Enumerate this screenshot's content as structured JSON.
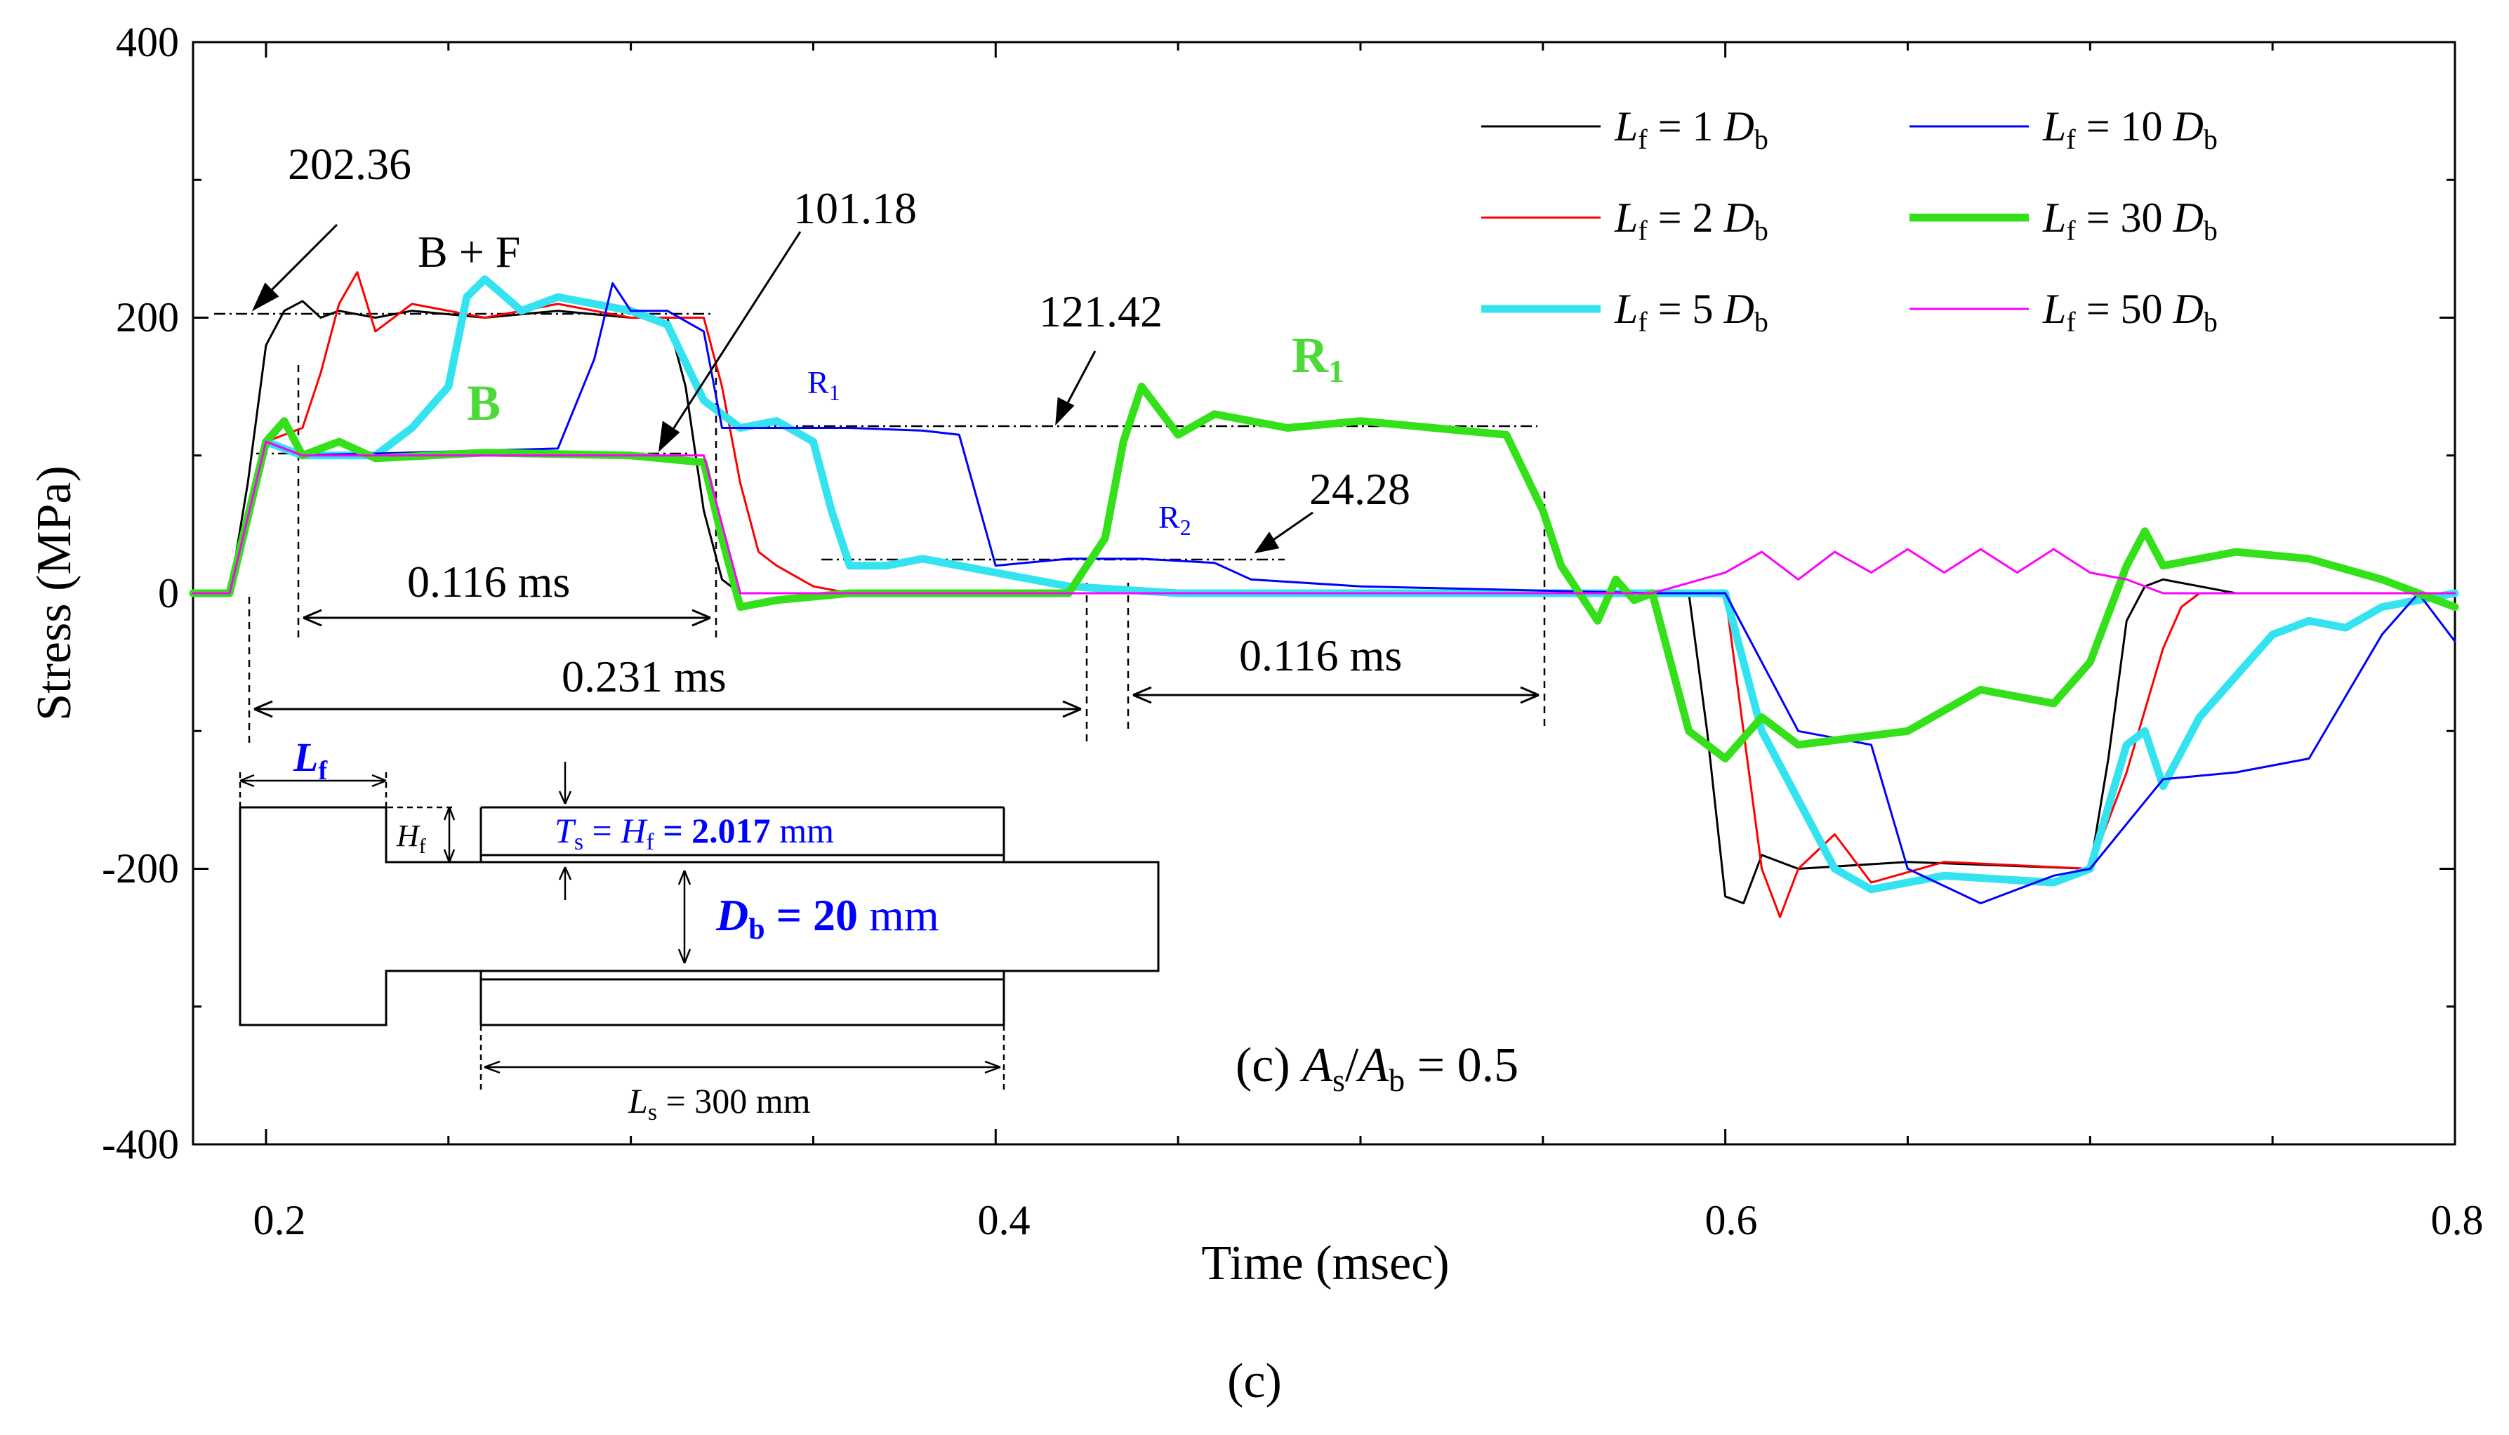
{
  "chart_data": {
    "type": "line",
    "title": "(c) As/Ab = 0.5",
    "caption": "(c)",
    "xlabel": "Time (msec)",
    "ylabel": "Stress (MPa)",
    "xlim": [
      0.18,
      0.8
    ],
    "ylim": [
      -400,
      400
    ],
    "x_ticks": [
      "0.2",
      "0.4",
      "0.6",
      "0.8"
    ],
    "y_ticks": [
      "400",
      "200",
      "0",
      "-200",
      "-400"
    ],
    "legend_position": "top-right",
    "panel_label": {
      "prefix": "(c)  ",
      "a": "A",
      "s": "s",
      "slash": "/",
      "b": "A",
      "bsub": "b",
      "eq": " = 0.5"
    },
    "series": [
      {
        "name": "Lf = 1 Db",
        "label_main": "L",
        "label_sub": "f",
        "label_mid": " = 1 ",
        "label_d": "D",
        "label_dsub": "b",
        "color": "#000000",
        "width": 3,
        "points": [
          [
            0.18,
            0
          ],
          [
            0.19,
            0
          ],
          [
            0.195,
            80
          ],
          [
            0.2,
            180
          ],
          [
            0.205,
            205
          ],
          [
            0.21,
            212
          ],
          [
            0.215,
            200
          ],
          [
            0.22,
            205
          ],
          [
            0.23,
            200
          ],
          [
            0.24,
            205
          ],
          [
            0.26,
            200
          ],
          [
            0.28,
            205
          ],
          [
            0.3,
            200
          ],
          [
            0.31,
            200
          ],
          [
            0.315,
            150
          ],
          [
            0.32,
            60
          ],
          [
            0.325,
            10
          ],
          [
            0.33,
            0
          ],
          [
            0.34,
            0
          ],
          [
            0.36,
            0
          ],
          [
            0.4,
            0
          ],
          [
            0.5,
            0
          ],
          [
            0.59,
            0
          ],
          [
            0.595,
            -100
          ],
          [
            0.6,
            -220
          ],
          [
            0.605,
            -225
          ],
          [
            0.61,
            -190
          ],
          [
            0.62,
            -200
          ],
          [
            0.65,
            -195
          ],
          [
            0.7,
            -200
          ],
          [
            0.705,
            -120
          ],
          [
            0.71,
            -20
          ],
          [
            0.715,
            5
          ],
          [
            0.72,
            10
          ],
          [
            0.74,
            0
          ],
          [
            0.78,
            0
          ],
          [
            0.8,
            0
          ]
        ]
      },
      {
        "name": "Lf = 2 Db",
        "label_main": "L",
        "label_sub": "f",
        "label_mid": " = 2 ",
        "label_d": "D",
        "label_dsub": "b",
        "color": "#ff0000",
        "width": 3,
        "points": [
          [
            0.18,
            0
          ],
          [
            0.19,
            0
          ],
          [
            0.2,
            110
          ],
          [
            0.21,
            120
          ],
          [
            0.215,
            160
          ],
          [
            0.22,
            210
          ],
          [
            0.225,
            233
          ],
          [
            0.23,
            190
          ],
          [
            0.24,
            210
          ],
          [
            0.26,
            200
          ],
          [
            0.28,
            210
          ],
          [
            0.3,
            200
          ],
          [
            0.32,
            200
          ],
          [
            0.325,
            150
          ],
          [
            0.33,
            80
          ],
          [
            0.335,
            30
          ],
          [
            0.34,
            20
          ],
          [
            0.35,
            5
          ],
          [
            0.36,
            0
          ],
          [
            0.4,
            0
          ],
          [
            0.5,
            0
          ],
          [
            0.6,
            0
          ],
          [
            0.605,
            -100
          ],
          [
            0.61,
            -200
          ],
          [
            0.615,
            -235
          ],
          [
            0.62,
            -200
          ],
          [
            0.63,
            -175
          ],
          [
            0.64,
            -210
          ],
          [
            0.66,
            -195
          ],
          [
            0.7,
            -200
          ],
          [
            0.71,
            -130
          ],
          [
            0.72,
            -40
          ],
          [
            0.725,
            -10
          ],
          [
            0.73,
            0
          ],
          [
            0.75,
            0
          ],
          [
            0.8,
            0
          ]
        ]
      },
      {
        "name": "Lf = 5 Db",
        "label_main": "L",
        "label_sub": "f",
        "label_mid": " = 5 ",
        "label_d": "D",
        "label_dsub": "b",
        "color": "#33e3f0",
        "width": 11,
        "points": [
          [
            0.18,
            0
          ],
          [
            0.19,
            0
          ],
          [
            0.2,
            110
          ],
          [
            0.21,
            100
          ],
          [
            0.23,
            100
          ],
          [
            0.24,
            120
          ],
          [
            0.25,
            150
          ],
          [
            0.255,
            215
          ],
          [
            0.26,
            228
          ],
          [
            0.27,
            205
          ],
          [
            0.28,
            215
          ],
          [
            0.3,
            205
          ],
          [
            0.31,
            195
          ],
          [
            0.32,
            140
          ],
          [
            0.33,
            120
          ],
          [
            0.34,
            125
          ],
          [
            0.35,
            110
          ],
          [
            0.355,
            60
          ],
          [
            0.36,
            20
          ],
          [
            0.37,
            20
          ],
          [
            0.38,
            25
          ],
          [
            0.4,
            15
          ],
          [
            0.42,
            5
          ],
          [
            0.45,
            0
          ],
          [
            0.55,
            0
          ],
          [
            0.6,
            0
          ],
          [
            0.61,
            -100
          ],
          [
            0.62,
            -150
          ],
          [
            0.63,
            -200
          ],
          [
            0.64,
            -215
          ],
          [
            0.66,
            -205
          ],
          [
            0.69,
            -210
          ],
          [
            0.7,
            -200
          ],
          [
            0.71,
            -110
          ],
          [
            0.715,
            -100
          ],
          [
            0.72,
            -140
          ],
          [
            0.73,
            -90
          ],
          [
            0.74,
            -60
          ],
          [
            0.75,
            -30
          ],
          [
            0.76,
            -20
          ],
          [
            0.77,
            -25
          ],
          [
            0.78,
            -10
          ],
          [
            0.8,
            0
          ]
        ]
      },
      {
        "name": "Lf = 10 Db",
        "label_main": "L",
        "label_sub": "f",
        "label_mid": " = 10 ",
        "label_d": "D",
        "label_dsub": "b",
        "color": "#0000ff",
        "width": 3,
        "points": [
          [
            0.18,
            0
          ],
          [
            0.19,
            0
          ],
          [
            0.2,
            110
          ],
          [
            0.21,
            100
          ],
          [
            0.28,
            105
          ],
          [
            0.29,
            170
          ],
          [
            0.295,
            225
          ],
          [
            0.3,
            205
          ],
          [
            0.31,
            205
          ],
          [
            0.32,
            190
          ],
          [
            0.325,
            120
          ],
          [
            0.34,
            120
          ],
          [
            0.36,
            120
          ],
          [
            0.38,
            118
          ],
          [
            0.39,
            115
          ],
          [
            0.4,
            20
          ],
          [
            0.42,
            25
          ],
          [
            0.44,
            25
          ],
          [
            0.46,
            22
          ],
          [
            0.47,
            10
          ],
          [
            0.5,
            5
          ],
          [
            0.58,
            0
          ],
          [
            0.6,
            0
          ],
          [
            0.62,
            -100
          ],
          [
            0.64,
            -110
          ],
          [
            0.65,
            -200
          ],
          [
            0.67,
            -225
          ],
          [
            0.69,
            -205
          ],
          [
            0.7,
            -200
          ],
          [
            0.72,
            -135
          ],
          [
            0.74,
            -130
          ],
          [
            0.76,
            -120
          ],
          [
            0.78,
            -30
          ],
          [
            0.79,
            0
          ],
          [
            0.8,
            -35
          ]
        ]
      },
      {
        "name": "Lf = 30 Db",
        "label_main": "L",
        "label_sub": "f",
        "label_mid": " = 30 ",
        "label_d": "D",
        "label_dsub": "b",
        "color": "#33e019",
        "width": 11,
        "points": [
          [
            0.18,
            0
          ],
          [
            0.19,
            0
          ],
          [
            0.2,
            110
          ],
          [
            0.205,
            125
          ],
          [
            0.21,
            100
          ],
          [
            0.22,
            110
          ],
          [
            0.23,
            98
          ],
          [
            0.26,
            102
          ],
          [
            0.3,
            100
          ],
          [
            0.32,
            95
          ],
          [
            0.325,
            40
          ],
          [
            0.33,
            -10
          ],
          [
            0.34,
            -5
          ],
          [
            0.36,
            0
          ],
          [
            0.42,
            0
          ],
          [
            0.43,
            40
          ],
          [
            0.435,
            110
          ],
          [
            0.44,
            150
          ],
          [
            0.45,
            115
          ],
          [
            0.46,
            130
          ],
          [
            0.48,
            120
          ],
          [
            0.5,
            125
          ],
          [
            0.52,
            120
          ],
          [
            0.54,
            115
          ],
          [
            0.55,
            60
          ],
          [
            0.555,
            20
          ],
          [
            0.56,
            0
          ],
          [
            0.565,
            -20
          ],
          [
            0.57,
            10
          ],
          [
            0.575,
            -5
          ],
          [
            0.58,
            0
          ],
          [
            0.59,
            -100
          ],
          [
            0.6,
            -120
          ],
          [
            0.61,
            -90
          ],
          [
            0.62,
            -110
          ],
          [
            0.65,
            -100
          ],
          [
            0.67,
            -70
          ],
          [
            0.68,
            -75
          ],
          [
            0.69,
            -80
          ],
          [
            0.7,
            -50
          ],
          [
            0.71,
            20
          ],
          [
            0.715,
            45
          ],
          [
            0.72,
            20
          ],
          [
            0.74,
            30
          ],
          [
            0.76,
            25
          ],
          [
            0.78,
            10
          ],
          [
            0.8,
            -10
          ]
        ]
      },
      {
        "name": "Lf = 50 Db",
        "label_main": "L",
        "label_sub": "f",
        "label_mid": " = 50 ",
        "label_d": "D",
        "label_dsub": "b",
        "color": "#ff00ff",
        "width": 3,
        "points": [
          [
            0.18,
            0
          ],
          [
            0.19,
            0
          ],
          [
            0.2,
            110
          ],
          [
            0.21,
            100
          ],
          [
            0.32,
            100
          ],
          [
            0.33,
            0
          ],
          [
            0.58,
            0
          ],
          [
            0.6,
            15
          ],
          [
            0.61,
            30
          ],
          [
            0.62,
            10
          ],
          [
            0.63,
            30
          ],
          [
            0.64,
            15
          ],
          [
            0.65,
            32
          ],
          [
            0.66,
            15
          ],
          [
            0.67,
            32
          ],
          [
            0.68,
            15
          ],
          [
            0.69,
            32
          ],
          [
            0.7,
            15
          ],
          [
            0.71,
            10
          ],
          [
            0.72,
            0
          ],
          [
            0.8,
            0
          ]
        ]
      }
    ],
    "annotations": {
      "v202": "202.36",
      "v101": "101.18",
      "v121": "121.42",
      "v24": "24.28",
      "bf": "B + F",
      "b": "B",
      "r1_big": "R",
      "r1_big_sub": "1",
      "r1_small": "R",
      "r1_small_sub": "1",
      "r2_small": "R",
      "r2_small_sub": "2",
      "dur1": "0.116 ms",
      "dur2": "0.231 ms",
      "dur3": "0.116 ms"
    },
    "inset": {
      "lf": "L",
      "lf_sub": "f",
      "hf": "H",
      "hf_sub": "f",
      "ts_label_a": "T",
      "ts_sub": "s",
      "ts_eq": " = ",
      "ts_label_b": "H",
      "ts_bsub": "f",
      "ts_value": " = 2.017",
      "ts_unit": " mm",
      "db_label": "D",
      "db_sub": "b",
      "db_value": " = 20",
      "db_unit": " mm",
      "ls_label": "L",
      "ls_sub": "s",
      "ls_value": " = 300 mm"
    }
  }
}
